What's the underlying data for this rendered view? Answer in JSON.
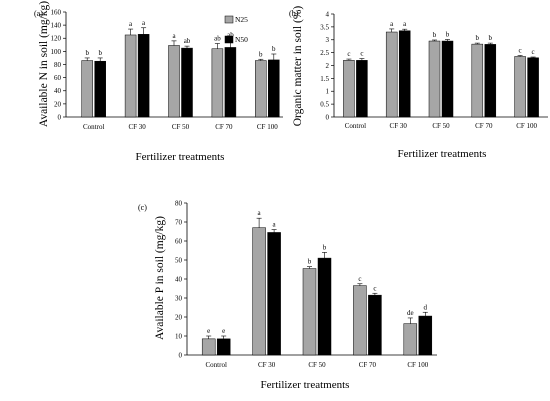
{
  "series_colors": {
    "N25": "#a6a6a6",
    "N50": "#000000"
  },
  "chart_data": [
    {
      "type": "bar",
      "panel": "(a)",
      "categories": [
        "Control",
        "CF 30",
        "CF 50",
        "CF 70",
        "CF 100"
      ],
      "series": [
        {
          "name": "N25",
          "values": [
            86,
            125,
            109,
            104,
            86
          ],
          "errors": [
            4,
            9,
            7,
            8,
            2
          ]
        },
        {
          "name": "N50",
          "values": [
            85,
            126,
            105,
            106,
            87
          ],
          "errors": [
            5,
            10,
            3,
            11,
            9
          ]
        }
      ],
      "letters": [
        [
          "b",
          "b"
        ],
        [
          "a",
          "a"
        ],
        [
          "a",
          "ab"
        ],
        [
          "ab",
          "ab"
        ],
        [
          "b",
          "b"
        ]
      ],
      "ylabel": "Available N in soil (mg/kg)",
      "xlabel": "Fertilizer treatments",
      "ylim": [
        0,
        160
      ],
      "yticks": [
        0,
        20,
        40,
        60,
        80,
        100,
        120,
        140,
        160
      ],
      "legend": "top-right"
    },
    {
      "type": "bar",
      "panel": "(b)",
      "categories": [
        "Control",
        "CF 30",
        "CF 50",
        "CF 70",
        "CF 100"
      ],
      "series": [
        {
          "name": "N25",
          "values": [
            2.2,
            3.3,
            2.95,
            2.83,
            2.35
          ],
          "errors": [
            0.05,
            0.12,
            0.04,
            0.04,
            0.04
          ]
        },
        {
          "name": "N50",
          "values": [
            2.2,
            3.35,
            2.95,
            2.82,
            2.3
          ],
          "errors": [
            0.07,
            0.06,
            0.06,
            0.05,
            0.03
          ]
        }
      ],
      "letters": [
        [
          "c",
          "c"
        ],
        [
          "a",
          "a"
        ],
        [
          "b",
          "b"
        ],
        [
          "b",
          "b"
        ],
        [
          "c",
          "c"
        ]
      ],
      "ylabel": "Organic matter in soil (%)",
      "xlabel": "Fertilizer treatments",
      "ylim": [
        0,
        4
      ],
      "yticks": [
        0,
        0.5,
        1,
        1.5,
        2,
        2.5,
        3,
        3.5,
        4
      ],
      "tick_labels": [
        "0",
        "0.5",
        "1",
        "1.5",
        "2",
        "2.5",
        "3",
        "3.5",
        "4"
      ]
    },
    {
      "type": "bar",
      "panel": "(c)",
      "categories": [
        "Control",
        "CF 30",
        "CF 50",
        "CF 70",
        "CF 100"
      ],
      "series": [
        {
          "name": "N25",
          "values": [
            8.5,
            67,
            45.5,
            36.5,
            16.5
          ],
          "errors": [
            1.5,
            5,
            1,
            1,
            3
          ]
        },
        {
          "name": "N50",
          "values": [
            8.5,
            64.5,
            51,
            31.5,
            20.5
          ],
          "errors": [
            1.5,
            1.5,
            3,
            1,
            2
          ]
        }
      ],
      "letters": [
        [
          "e",
          "e"
        ],
        [
          "a",
          "a"
        ],
        [
          "b",
          "b"
        ],
        [
          "c",
          "c"
        ],
        [
          "de",
          "d"
        ]
      ],
      "ylabel": "Available P in soil (mg/kg)",
      "xlabel": "Fertilizer treatments",
      "ylim": [
        0,
        80
      ],
      "yticks": [
        0,
        10,
        20,
        30,
        40,
        50,
        60,
        70,
        80
      ]
    }
  ]
}
